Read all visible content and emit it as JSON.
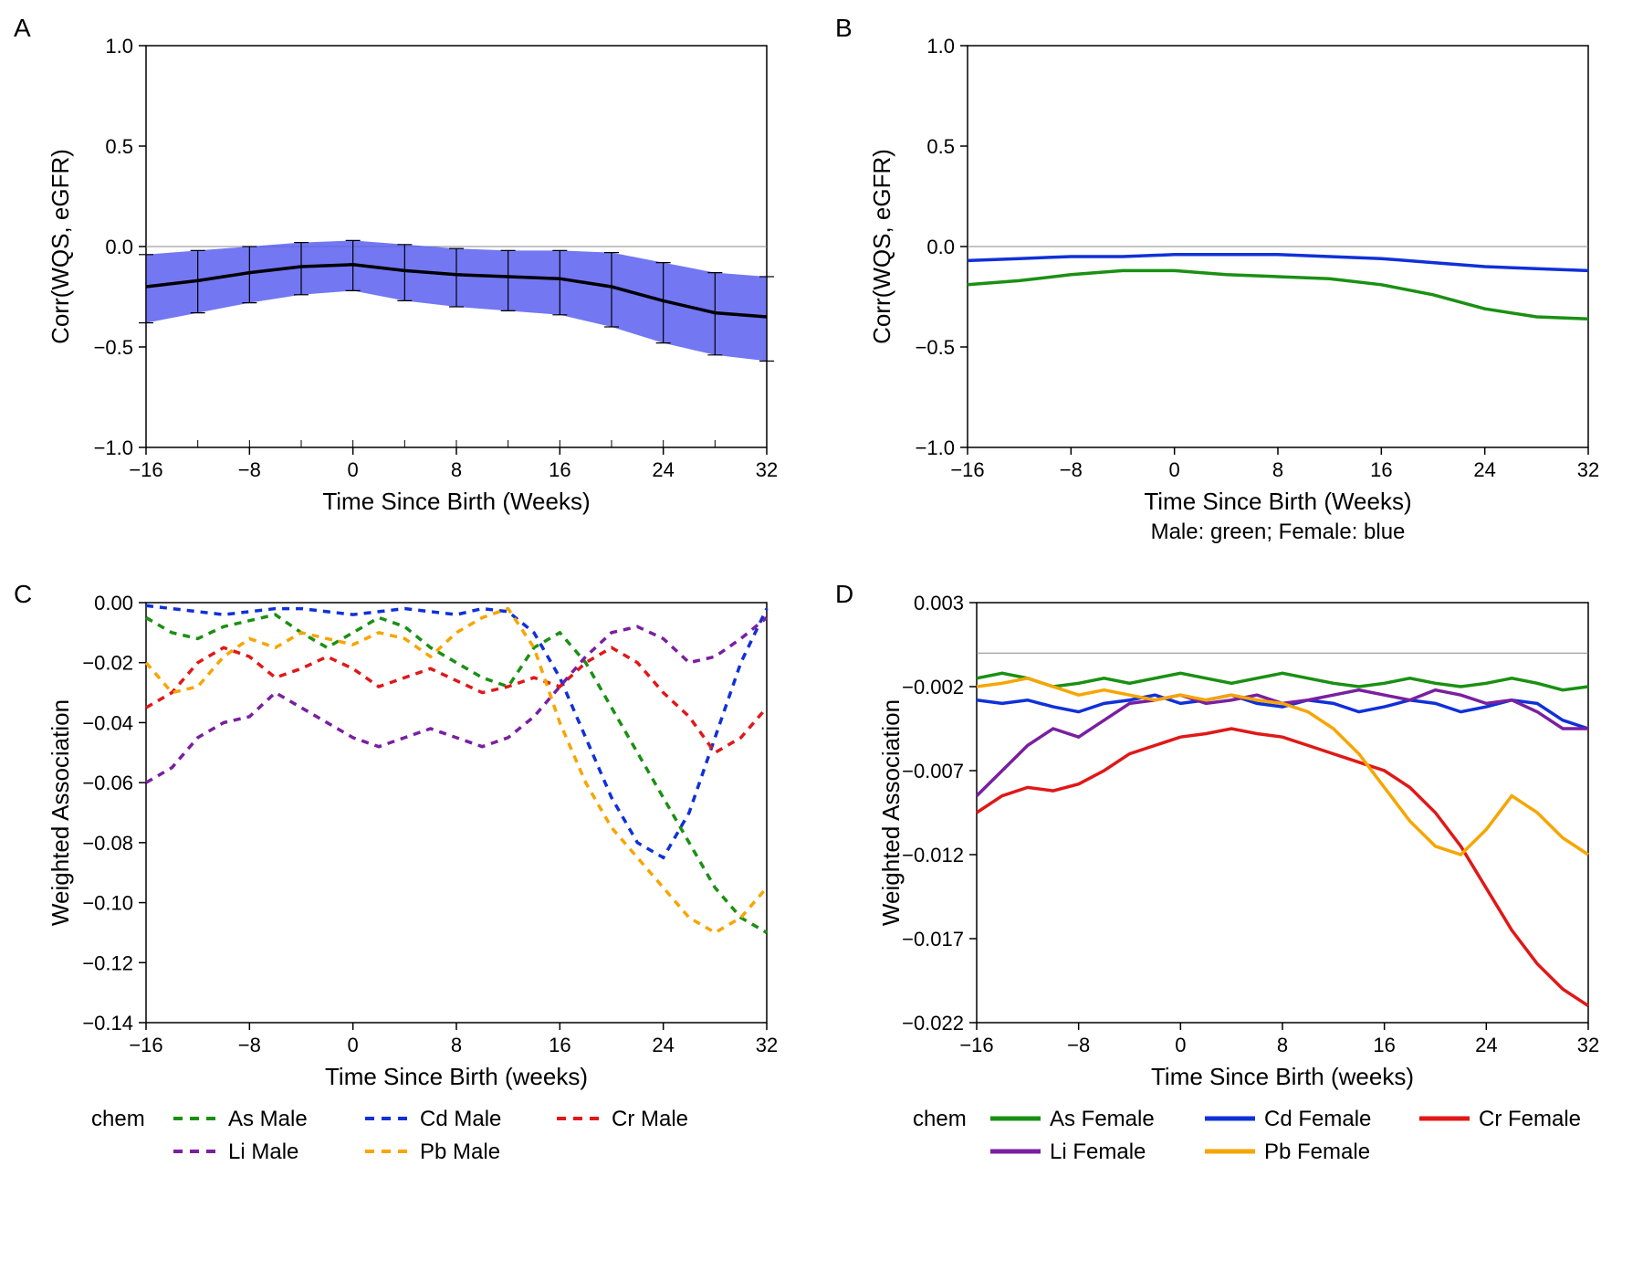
{
  "figure": {
    "background_color": "#ffffff",
    "panel_labels": [
      "A",
      "B",
      "C",
      "D"
    ],
    "label_fontsize": 28,
    "axis_fontsize": 22,
    "title_fontsize": 26
  },
  "panelA": {
    "type": "line",
    "xlabel": "Time Since Birth (Weeks)",
    "ylabel": "Corr(WQS, eGFR)",
    "xlim": [
      -16,
      32
    ],
    "ylim": [
      -1.0,
      1.0
    ],
    "xticks": [
      -16,
      -8,
      0,
      8,
      16,
      24,
      32
    ],
    "yticks": [
      -1.0,
      -0.5,
      0.0,
      0.5,
      1.0
    ],
    "ci_color": "#5a5ff0",
    "ci_opacity": 0.85,
    "line_color": "#000000",
    "line_width": 3.5,
    "errorbar_color": "#000000",
    "errorbar_x": [
      -16,
      -12,
      -8,
      -4,
      0,
      4,
      8,
      12,
      16,
      20,
      24,
      28,
      32
    ],
    "center": {
      "x": [
        -16,
        -12,
        -8,
        -4,
        0,
        4,
        8,
        12,
        16,
        20,
        24,
        28,
        32
      ],
      "y": [
        -0.2,
        -0.17,
        -0.13,
        -0.1,
        -0.09,
        -0.12,
        -0.14,
        -0.15,
        -0.16,
        -0.2,
        -0.27,
        -0.33,
        -0.35
      ]
    },
    "ci_lower": {
      "x": [
        -16,
        -12,
        -8,
        -4,
        0,
        4,
        8,
        12,
        16,
        20,
        24,
        28,
        32
      ],
      "y": [
        -0.38,
        -0.33,
        -0.28,
        -0.24,
        -0.22,
        -0.27,
        -0.3,
        -0.32,
        -0.34,
        -0.4,
        -0.48,
        -0.54,
        -0.57
      ]
    },
    "ci_upper": {
      "x": [
        -16,
        -12,
        -8,
        -4,
        0,
        4,
        8,
        12,
        16,
        20,
        24,
        28,
        32
      ],
      "y": [
        -0.04,
        -0.02,
        0.0,
        0.02,
        0.03,
        0.01,
        -0.01,
        -0.02,
        -0.02,
        -0.03,
        -0.08,
        -0.13,
        -0.15
      ]
    }
  },
  "panelB": {
    "type": "line",
    "xlabel": "Time Since Birth (Weeks)",
    "ylabel": "Corr(WQS, eGFR)",
    "subcaption": "Male: green; Female: blue",
    "xlim": [
      -16,
      32
    ],
    "ylim": [
      -1.0,
      1.0
    ],
    "xticks": [
      -16,
      -8,
      0,
      8,
      16,
      24,
      32
    ],
    "yticks": [
      -1.0,
      -0.5,
      0.0,
      0.5,
      1.0
    ],
    "line_width": 3.5,
    "series": [
      {
        "name": "Male",
        "color": "#1a9013",
        "x": [
          -16,
          -12,
          -8,
          -4,
          0,
          4,
          8,
          12,
          16,
          20,
          24,
          28,
          32
        ],
        "y": [
          -0.19,
          -0.17,
          -0.14,
          -0.12,
          -0.12,
          -0.14,
          -0.15,
          -0.16,
          -0.19,
          -0.24,
          -0.31,
          -0.35,
          -0.36
        ]
      },
      {
        "name": "Female",
        "color": "#1030d8",
        "x": [
          -16,
          -12,
          -8,
          -4,
          0,
          4,
          8,
          12,
          16,
          20,
          24,
          28,
          32
        ],
        "y": [
          -0.07,
          -0.06,
          -0.05,
          -0.05,
          -0.04,
          -0.04,
          -0.04,
          -0.05,
          -0.06,
          -0.08,
          -0.1,
          -0.11,
          -0.12
        ]
      }
    ]
  },
  "panelC": {
    "type": "line",
    "xlabel": "Time Since Birth (weeks)",
    "ylabel": "Weighted Association",
    "xlim": [
      -16,
      32
    ],
    "ylim": [
      -0.14,
      0.0
    ],
    "xticks": [
      -16,
      -8,
      0,
      8,
      16,
      24,
      32
    ],
    "yticks": [
      -0.14,
      -0.12,
      -0.1,
      -0.08,
      -0.06,
      -0.04,
      -0.02,
      0.0
    ],
    "line_width": 3.5,
    "dash": "8,7",
    "legend_title": "chem",
    "series": [
      {
        "name": "As Male",
        "color": "#1a9013",
        "x": [
          -16,
          -14,
          -12,
          -10,
          -8,
          -6,
          -4,
          -2,
          0,
          2,
          4,
          6,
          8,
          10,
          12,
          14,
          16,
          18,
          20,
          22,
          24,
          26,
          28,
          30,
          32
        ],
        "y": [
          -0.005,
          -0.01,
          -0.012,
          -0.008,
          -0.006,
          -0.004,
          -0.01,
          -0.015,
          -0.01,
          -0.005,
          -0.008,
          -0.015,
          -0.02,
          -0.025,
          -0.028,
          -0.015,
          -0.01,
          -0.02,
          -0.035,
          -0.05,
          -0.065,
          -0.08,
          -0.095,
          -0.105,
          -0.11
        ]
      },
      {
        "name": "Cd Male",
        "color": "#1030d8",
        "x": [
          -16,
          -14,
          -12,
          -10,
          -8,
          -6,
          -4,
          -2,
          0,
          2,
          4,
          6,
          8,
          10,
          12,
          14,
          16,
          18,
          20,
          22,
          24,
          26,
          28,
          30,
          32
        ],
        "y": [
          -0.001,
          -0.002,
          -0.003,
          -0.004,
          -0.003,
          -0.002,
          -0.002,
          -0.003,
          -0.004,
          -0.003,
          -0.002,
          -0.003,
          -0.004,
          -0.002,
          -0.003,
          -0.01,
          -0.025,
          -0.045,
          -0.065,
          -0.08,
          -0.085,
          -0.07,
          -0.045,
          -0.02,
          -0.002
        ]
      },
      {
        "name": "Cr Male",
        "color": "#e01818",
        "x": [
          -16,
          -14,
          -12,
          -10,
          -8,
          -6,
          -4,
          -2,
          0,
          2,
          4,
          6,
          8,
          10,
          12,
          14,
          16,
          18,
          20,
          22,
          24,
          26,
          28,
          30,
          32
        ],
        "y": [
          -0.035,
          -0.03,
          -0.02,
          -0.015,
          -0.018,
          -0.025,
          -0.022,
          -0.018,
          -0.022,
          -0.028,
          -0.025,
          -0.022,
          -0.026,
          -0.03,
          -0.028,
          -0.025,
          -0.028,
          -0.02,
          -0.015,
          -0.02,
          -0.03,
          -0.038,
          -0.05,
          -0.045,
          -0.035
        ]
      },
      {
        "name": "Li Male",
        "color": "#7a1fa0",
        "x": [
          -16,
          -14,
          -12,
          -10,
          -8,
          -6,
          -4,
          -2,
          0,
          2,
          4,
          6,
          8,
          10,
          12,
          14,
          16,
          18,
          20,
          22,
          24,
          26,
          28,
          30,
          32
        ],
        "y": [
          -0.06,
          -0.055,
          -0.045,
          -0.04,
          -0.038,
          -0.03,
          -0.035,
          -0.04,
          -0.045,
          -0.048,
          -0.045,
          -0.042,
          -0.045,
          -0.048,
          -0.045,
          -0.038,
          -0.028,
          -0.018,
          -0.01,
          -0.008,
          -0.012,
          -0.02,
          -0.018,
          -0.012,
          -0.005
        ]
      },
      {
        "name": "Pb Male",
        "color": "#f7a500",
        "x": [
          -16,
          -14,
          -12,
          -10,
          -8,
          -6,
          -4,
          -2,
          0,
          2,
          4,
          6,
          8,
          10,
          12,
          14,
          16,
          18,
          20,
          22,
          24,
          26,
          28,
          30,
          32
        ],
        "y": [
          -0.02,
          -0.03,
          -0.028,
          -0.018,
          -0.012,
          -0.015,
          -0.01,
          -0.012,
          -0.014,
          -0.01,
          -0.012,
          -0.018,
          -0.01,
          -0.005,
          -0.002,
          -0.015,
          -0.04,
          -0.06,
          -0.075,
          -0.085,
          -0.095,
          -0.105,
          -0.11,
          -0.105,
          -0.095
        ]
      }
    ]
  },
  "panelD": {
    "type": "line",
    "xlabel": "Time Since Birth (weeks)",
    "ylabel": "Weighted Association",
    "xlim": [
      -16,
      32
    ],
    "ylim": [
      -0.022,
      0.003
    ],
    "xticks": [
      -16,
      -8,
      0,
      8,
      16,
      24,
      32
    ],
    "yticks": [
      -0.022,
      -0.017,
      -0.012,
      -0.007,
      -0.002,
      0.003
    ],
    "line_width": 3.5,
    "legend_title": "chem",
    "series": [
      {
        "name": "As Female",
        "color": "#1a9013",
        "x": [
          -16,
          -14,
          -12,
          -10,
          -8,
          -6,
          -4,
          -2,
          0,
          2,
          4,
          6,
          8,
          10,
          12,
          14,
          16,
          18,
          20,
          22,
          24,
          26,
          28,
          30,
          32
        ],
        "y": [
          -0.0015,
          -0.0012,
          -0.0015,
          -0.002,
          -0.0018,
          -0.0015,
          -0.0018,
          -0.0015,
          -0.0012,
          -0.0015,
          -0.0018,
          -0.0015,
          -0.0012,
          -0.0015,
          -0.0018,
          -0.002,
          -0.0018,
          -0.0015,
          -0.0018,
          -0.002,
          -0.0018,
          -0.0015,
          -0.0018,
          -0.0022,
          -0.002
        ]
      },
      {
        "name": "Cd Female",
        "color": "#1030d8",
        "x": [
          -16,
          -14,
          -12,
          -10,
          -8,
          -6,
          -4,
          -2,
          0,
          2,
          4,
          6,
          8,
          10,
          12,
          14,
          16,
          18,
          20,
          22,
          24,
          26,
          28,
          30,
          32
        ],
        "y": [
          -0.0028,
          -0.003,
          -0.0028,
          -0.0032,
          -0.0035,
          -0.003,
          -0.0028,
          -0.0025,
          -0.003,
          -0.0028,
          -0.0025,
          -0.003,
          -0.0032,
          -0.0028,
          -0.003,
          -0.0035,
          -0.0032,
          -0.0028,
          -0.003,
          -0.0035,
          -0.0032,
          -0.0028,
          -0.003,
          -0.004,
          -0.0045
        ]
      },
      {
        "name": "Cr Female",
        "color": "#e01818",
        "x": [
          -16,
          -14,
          -12,
          -10,
          -8,
          -6,
          -4,
          -2,
          0,
          2,
          4,
          6,
          8,
          10,
          12,
          14,
          16,
          18,
          20,
          22,
          24,
          26,
          28,
          30,
          32
        ],
        "y": [
          -0.0095,
          -0.0085,
          -0.008,
          -0.0082,
          -0.0078,
          -0.007,
          -0.006,
          -0.0055,
          -0.005,
          -0.0048,
          -0.0045,
          -0.0048,
          -0.005,
          -0.0055,
          -0.006,
          -0.0065,
          -0.007,
          -0.008,
          -0.0095,
          -0.0115,
          -0.014,
          -0.0165,
          -0.0185,
          -0.02,
          -0.021
        ]
      },
      {
        "name": "Li Female",
        "color": "#7a1fa0",
        "x": [
          -16,
          -14,
          -12,
          -10,
          -8,
          -6,
          -4,
          -2,
          0,
          2,
          4,
          6,
          8,
          10,
          12,
          14,
          16,
          18,
          20,
          22,
          24,
          26,
          28,
          30,
          32
        ],
        "y": [
          -0.0085,
          -0.007,
          -0.0055,
          -0.0045,
          -0.005,
          -0.004,
          -0.003,
          -0.0028,
          -0.0025,
          -0.003,
          -0.0028,
          -0.0025,
          -0.003,
          -0.0028,
          -0.0025,
          -0.0022,
          -0.0025,
          -0.0028,
          -0.0022,
          -0.0025,
          -0.003,
          -0.0028,
          -0.0035,
          -0.0045,
          -0.0045
        ]
      },
      {
        "name": "Pb Female",
        "color": "#f7a500",
        "x": [
          -16,
          -14,
          -12,
          -10,
          -8,
          -6,
          -4,
          -2,
          0,
          2,
          4,
          6,
          8,
          10,
          12,
          14,
          16,
          18,
          20,
          22,
          24,
          26,
          28,
          30,
          32
        ],
        "y": [
          -0.002,
          -0.0018,
          -0.0015,
          -0.002,
          -0.0025,
          -0.0022,
          -0.0025,
          -0.0028,
          -0.0025,
          -0.0028,
          -0.0025,
          -0.0028,
          -0.003,
          -0.0035,
          -0.0045,
          -0.006,
          -0.008,
          -0.01,
          -0.0115,
          -0.012,
          -0.0105,
          -0.0085,
          -0.0095,
          -0.011,
          -0.012
        ]
      }
    ]
  }
}
